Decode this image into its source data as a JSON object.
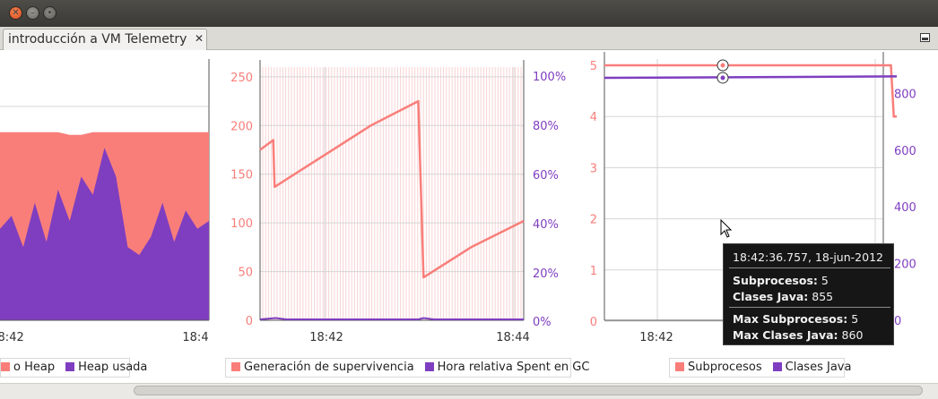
{
  "tab": {
    "title": "introducción a VM Telemetry",
    "close": "✕"
  },
  "colors": {
    "salmon": "#f97e7a",
    "purple": "#7f3ec0"
  },
  "chart_data": [
    {
      "type": "area",
      "x_ticks": [
        "18:42",
        "18:4"
      ],
      "series": [
        {
          "name": "o Heap",
          "values": [
            0.72,
            0.72,
            0.72,
            0.72,
            0.72,
            0.72,
            0.71,
            0.71,
            0.72,
            0.72,
            0.72,
            0.72,
            0.72,
            0.72,
            0.72,
            0.72,
            0.72,
            0.72,
            0.72
          ]
        },
        {
          "name": "Heap usada",
          "values": [
            0.35,
            0.4,
            0.28,
            0.45,
            0.3,
            0.5,
            0.38,
            0.55,
            0.48,
            0.66,
            0.55,
            0.28,
            0.25,
            0.32,
            0.45,
            0.3,
            0.42,
            0.35,
            0.38
          ]
        }
      ]
    },
    {
      "type": "line",
      "y_ticks_left": [
        "250",
        "200",
        "150",
        "100",
        "50",
        "0"
      ],
      "y_ticks_right": [
        "100%",
        "80%",
        "60%",
        "40%",
        "20%",
        "0%"
      ],
      "x_ticks": [
        "18:42",
        "18:44"
      ],
      "ylim": [
        0,
        260
      ],
      "series": [
        {
          "name": "Generación de supervivencia",
          "points": [
            [
              0,
              175
            ],
            [
              0.05,
              185
            ],
            [
              0.055,
              137
            ],
            [
              0.2,
              162
            ],
            [
              0.42,
              200
            ],
            [
              0.6,
              225
            ],
            [
              0.62,
              44
            ],
            [
              0.8,
              75
            ],
            [
              1,
              102
            ]
          ]
        },
        {
          "name": "Hora relativa Spent en GC",
          "points": [
            [
              0,
              0
            ],
            [
              0.06,
              1
            ],
            [
              0.1,
              0
            ],
            [
              0.6,
              0
            ],
            [
              0.62,
              1
            ],
            [
              0.66,
              0
            ],
            [
              1,
              0
            ]
          ]
        }
      ]
    },
    {
      "type": "line",
      "y_ticks_left": [
        "5",
        "4",
        "3",
        "2",
        "1",
        "0"
      ],
      "y_ticks_right": [
        "800",
        "600",
        "400",
        "200",
        "0"
      ],
      "x_ticks": [
        "18:42"
      ],
      "series": [
        {
          "name": "Subprocesos",
          "points": [
            [
              0,
              5
            ],
            [
              0.98,
              5
            ],
            [
              0.99,
              4
            ],
            [
              1,
              4
            ]
          ]
        },
        {
          "name": "Clases Java",
          "points": [
            [
              0,
              855
            ],
            [
              1,
              860
            ]
          ]
        }
      ]
    }
  ],
  "legends": [
    {
      "items": [
        {
          "label": "o Heap",
          "color": "#f97e7a"
        },
        {
          "label": "Heap usada",
          "color": "#7f3ec0"
        }
      ]
    },
    {
      "items": [
        {
          "label": "Generación de supervivencia",
          "color": "#f97e7a"
        },
        {
          "label": "Hora relativa Spent en GC",
          "color": "#7f3ec0"
        }
      ]
    },
    {
      "items": [
        {
          "label": "Subprocesos",
          "color": "#f97e7a"
        },
        {
          "label": "Clases Java",
          "color": "#7f3ec0"
        }
      ]
    }
  ],
  "tooltip": {
    "timestamp": "18:42:36.757, 18-jun-2012",
    "rows": [
      {
        "label": "Subprocesos:",
        "value": "5"
      },
      {
        "label": "Clases Java:",
        "value": "855"
      },
      {
        "label": "Max Subprocesos:",
        "value": "5"
      },
      {
        "label": "Max Clases Java:",
        "value": "860"
      }
    ]
  }
}
